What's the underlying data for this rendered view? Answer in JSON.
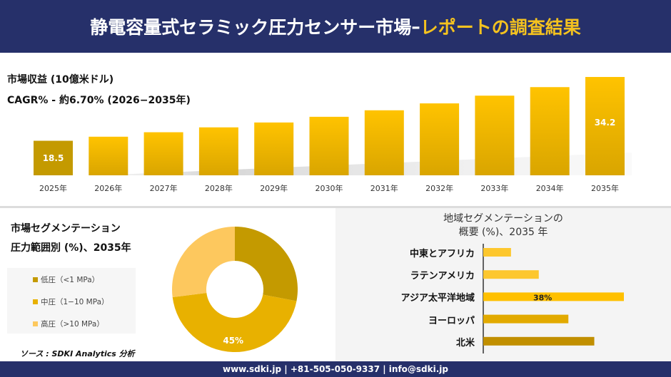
{
  "header": {
    "title_main": "静電容量式セラミック圧力センサー市場",
    "title_sep": " –",
    "title_highlight": "レポートの調査結果"
  },
  "revenue": {
    "label": "市場収益 (10億米ドル)",
    "cagr": "CAGR% - 約6.70% (2026−2035年)"
  },
  "colors": {
    "navy": "#26306a",
    "highlight": "#f4c21f",
    "low": "#c49a00",
    "mid": "#e8b100",
    "high": "#fdc85e"
  },
  "chart_data": [
    {
      "type": "bar",
      "categories": [
        "2025年",
        "2026年",
        "2027年",
        "2028年",
        "2029年",
        "2030年",
        "2031年",
        "2032年",
        "2033年",
        "2034年",
        "2035年"
      ],
      "values": [
        18.5,
        19.5,
        20.6,
        21.8,
        23.0,
        24.4,
        26.0,
        27.7,
        29.6,
        31.7,
        34.2
      ],
      "data_labels": {
        "0": "18.5",
        "10": "34.2"
      },
      "ylim": [
        10,
        35
      ],
      "grid": false
    },
    {
      "type": "pie",
      "title": "市場セグメンテーション",
      "subtitle": "圧力範囲別 (%)、2035年",
      "categories": [
        "低圧（<1 MPa）",
        "中圧（1−10 MPa）",
        "高圧（>10 MPa）"
      ],
      "values": [
        28,
        45,
        27
      ],
      "data_labels": {
        "1": "45%"
      },
      "donut": true,
      "legend": "left"
    },
    {
      "type": "bar",
      "orientation": "horizontal",
      "title": "地域セグメンテーションの",
      "subtitle": "概要 (%)、2035 年",
      "categories": [
        "中東とアフリカ",
        "ラテンアメリカ",
        "アジア太平洋地域",
        "ヨーロッパ",
        "北米"
      ],
      "values": [
        7.5,
        15,
        38,
        23,
        30
      ],
      "data_labels": {
        "2": "38%"
      },
      "grid": false
    }
  ],
  "source": "ソース : SDKI Analytics 分析",
  "footer": "www.sdki.jp | +81-505-050-9337 | info@sdki.jp"
}
